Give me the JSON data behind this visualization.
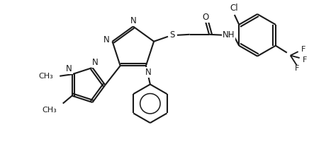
{
  "bg_color": "#ffffff",
  "line_color": "#1a1a1a",
  "bond_lw": 1.5,
  "font_size": 8.5,
  "figsize": [
    4.67,
    2.04
  ],
  "dpi": 100,
  "xlim": [
    0,
    9.34
  ],
  "ylim": [
    0,
    4.08
  ]
}
